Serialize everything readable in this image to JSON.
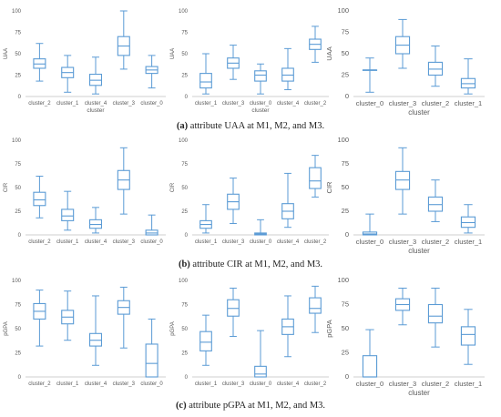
{
  "captions": [
    {
      "letter": "(a)",
      "text": " attribute UAA at M1, M2, and M3."
    },
    {
      "letter": "(b)",
      "text": " attribute CIR at M1, M2, and M3."
    },
    {
      "letter": "(c)",
      "text": " attribute pGPA at M1, M2, and M3."
    }
  ],
  "style": {
    "box_color": "#5b9bd5",
    "axis_color": "#bfbfbf",
    "text_color": "#595959"
  },
  "chart_data": [
    {
      "id": "a-m1",
      "type": "box",
      "ylabel": "UAA",
      "xlabel": "cluster",
      "ylim": [
        0,
        100
      ],
      "yticks": [
        0,
        25,
        50,
        75,
        100
      ],
      "categories": [
        "cluster_2",
        "cluster_1",
        "cluster_4",
        "cluster_3",
        "cluster_0"
      ],
      "boxes": [
        {
          "min": 18,
          "q1": 33,
          "median": 38,
          "q3": 44,
          "max": 62
        },
        {
          "min": 5,
          "q1": 22,
          "median": 28,
          "q3": 34,
          "max": 48
        },
        {
          "min": 3,
          "q1": 13,
          "median": 19,
          "q3": 26,
          "max": 46
        },
        {
          "min": 32,
          "q1": 48,
          "median": 59,
          "q3": 70,
          "max": 100
        },
        {
          "min": 10,
          "q1": 27,
          "median": 31,
          "q3": 35,
          "max": 48
        }
      ]
    },
    {
      "id": "a-m2",
      "type": "box",
      "ylabel": "UAA",
      "xlabel": "cluster",
      "ylim": [
        0,
        100
      ],
      "yticks": [
        0,
        25,
        50,
        75,
        100
      ],
      "categories": [
        "cluster_1",
        "cluster_3",
        "cluster_0",
        "cluster_4",
        "cluster_2"
      ],
      "boxes": [
        {
          "min": 3,
          "q1": 10,
          "median": 17,
          "q3": 27,
          "max": 50
        },
        {
          "min": 20,
          "q1": 33,
          "median": 39,
          "q3": 45,
          "max": 60
        },
        {
          "min": 3,
          "q1": 18,
          "median": 25,
          "q3": 30,
          "max": 38
        },
        {
          "min": 8,
          "q1": 18,
          "median": 25,
          "q3": 33,
          "max": 56
        },
        {
          "min": 40,
          "q1": 55,
          "median": 61,
          "q3": 67,
          "max": 82
        }
      ]
    },
    {
      "id": "a-m3",
      "type": "box",
      "ylabel": "UAA",
      "xlabel": "cluster",
      "ylim": [
        0,
        100
      ],
      "yticks": [
        0,
        25,
        50,
        75,
        100
      ],
      "categories": [
        "cluster_0",
        "cluster_3",
        "cluster_2",
        "cluster_1"
      ],
      "boxes": [
        {
          "min": 5,
          "q1": 31,
          "median": 31,
          "q3": 31,
          "max": 45
        },
        {
          "min": 33,
          "q1": 50,
          "median": 60,
          "q3": 70,
          "max": 90
        },
        {
          "min": 12,
          "q1": 25,
          "median": 32,
          "q3": 40,
          "max": 59
        },
        {
          "min": 3,
          "q1": 10,
          "median": 15,
          "q3": 21,
          "max": 44
        }
      ]
    },
    {
      "id": "b-m1",
      "type": "box",
      "ylabel": "CIR",
      "xlabel": "",
      "ylim": [
        0,
        100
      ],
      "yticks": [
        0,
        25,
        50,
        75,
        100
      ],
      "categories": [
        "cluster_2",
        "cluster_1",
        "cluster_4",
        "cluster_3",
        "cluster_0"
      ],
      "boxes": [
        {
          "min": 18,
          "q1": 31,
          "median": 37,
          "q3": 45,
          "max": 62
        },
        {
          "min": 5,
          "q1": 15,
          "median": 20,
          "q3": 27,
          "max": 46
        },
        {
          "min": 2,
          "q1": 7,
          "median": 11,
          "q3": 16,
          "max": 29
        },
        {
          "min": 22,
          "q1": 48,
          "median": 58,
          "q3": 68,
          "max": 92
        },
        {
          "min": 0,
          "q1": 0,
          "median": 2,
          "q3": 5,
          "max": 21
        }
      ]
    },
    {
      "id": "b-m2",
      "type": "box",
      "ylabel": "CIR",
      "xlabel": "",
      "ylim": [
        0,
        100
      ],
      "yticks": [
        0,
        25,
        50,
        75,
        100
      ],
      "categories": [
        "cluster_1",
        "cluster_3",
        "cluster_0",
        "cluster_4",
        "cluster_2"
      ],
      "boxes": [
        {
          "min": 2,
          "q1": 7,
          "median": 11,
          "q3": 15,
          "max": 32
        },
        {
          "min": 12,
          "q1": 27,
          "median": 35,
          "q3": 43,
          "max": 60
        },
        {
          "min": 0,
          "q1": 0,
          "median": 1,
          "q3": 2,
          "max": 16
        },
        {
          "min": 8,
          "q1": 17,
          "median": 25,
          "q3": 33,
          "max": 65
        },
        {
          "min": 40,
          "q1": 49,
          "median": 57,
          "q3": 71,
          "max": 84
        }
      ]
    },
    {
      "id": "b-m3",
      "type": "box",
      "ylabel": "CIR",
      "xlabel": "cluster",
      "ylim": [
        0,
        100
      ],
      "yticks": [
        0,
        25,
        50,
        75,
        100
      ],
      "categories": [
        "cluster_0",
        "cluster_3",
        "cluster_2",
        "cluster_1"
      ],
      "boxes": [
        {
          "min": 0,
          "q1": 0,
          "median": 1,
          "q3": 3,
          "max": 22
        },
        {
          "min": 22,
          "q1": 48,
          "median": 58,
          "q3": 67,
          "max": 92
        },
        {
          "min": 14,
          "q1": 25,
          "median": 32,
          "q3": 40,
          "max": 58
        },
        {
          "min": 2,
          "q1": 8,
          "median": 13,
          "q3": 19,
          "max": 32
        }
      ]
    },
    {
      "id": "c-m1",
      "type": "box",
      "ylabel": "pGPA",
      "xlabel": "",
      "ylim": [
        0,
        100
      ],
      "yticks": [
        0,
        25,
        50,
        75,
        100
      ],
      "categories": [
        "cluster_2",
        "cluster_1",
        "cluster_4",
        "cluster_3",
        "cluster_0"
      ],
      "boxes": [
        {
          "min": 32,
          "q1": 60,
          "median": 68,
          "q3": 76,
          "max": 90
        },
        {
          "min": 38,
          "q1": 55,
          "median": 62,
          "q3": 69,
          "max": 89
        },
        {
          "min": 12,
          "q1": 32,
          "median": 38,
          "q3": 45,
          "max": 84
        },
        {
          "min": 30,
          "q1": 65,
          "median": 72,
          "q3": 79,
          "max": 93
        },
        {
          "min": 0,
          "q1": 0,
          "median": 14,
          "q3": 34,
          "max": 60
        }
      ]
    },
    {
      "id": "c-m2",
      "type": "box",
      "ylabel": "pGPA",
      "xlabel": "",
      "ylim": [
        0,
        100
      ],
      "yticks": [
        0,
        25,
        50,
        75,
        100
      ],
      "categories": [
        "cluster_1",
        "cluster_3",
        "cluster_0",
        "cluster_4",
        "cluster_2"
      ],
      "boxes": [
        {
          "min": 12,
          "q1": 27,
          "median": 36,
          "q3": 47,
          "max": 64
        },
        {
          "min": 42,
          "q1": 63,
          "median": 71,
          "q3": 80,
          "max": 92
        },
        {
          "min": 0,
          "q1": 0,
          "median": 3,
          "q3": 11,
          "max": 48
        },
        {
          "min": 21,
          "q1": 44,
          "median": 52,
          "q3": 60,
          "max": 84
        },
        {
          "min": 46,
          "q1": 66,
          "median": 71,
          "q3": 82,
          "max": 94
        }
      ]
    },
    {
      "id": "c-m3",
      "type": "box",
      "ylabel": "pGPA",
      "xlabel": "cluster",
      "ylim": [
        0,
        100
      ],
      "yticks": [
        0,
        25,
        50,
        75,
        100
      ],
      "categories": [
        "cluster_0",
        "cluster_3",
        "cluster_2",
        "cluster_1"
      ],
      "boxes": [
        {
          "min": 0,
          "q1": 0,
          "median": 0,
          "q3": 22,
          "max": 49
        },
        {
          "min": 54,
          "q1": 69,
          "median": 75,
          "q3": 81,
          "max": 92
        },
        {
          "min": 31,
          "q1": 56,
          "median": 63,
          "q3": 75,
          "max": 92
        },
        {
          "min": 13,
          "q1": 33,
          "median": 44,
          "q3": 52,
          "max": 70
        }
      ]
    }
  ]
}
